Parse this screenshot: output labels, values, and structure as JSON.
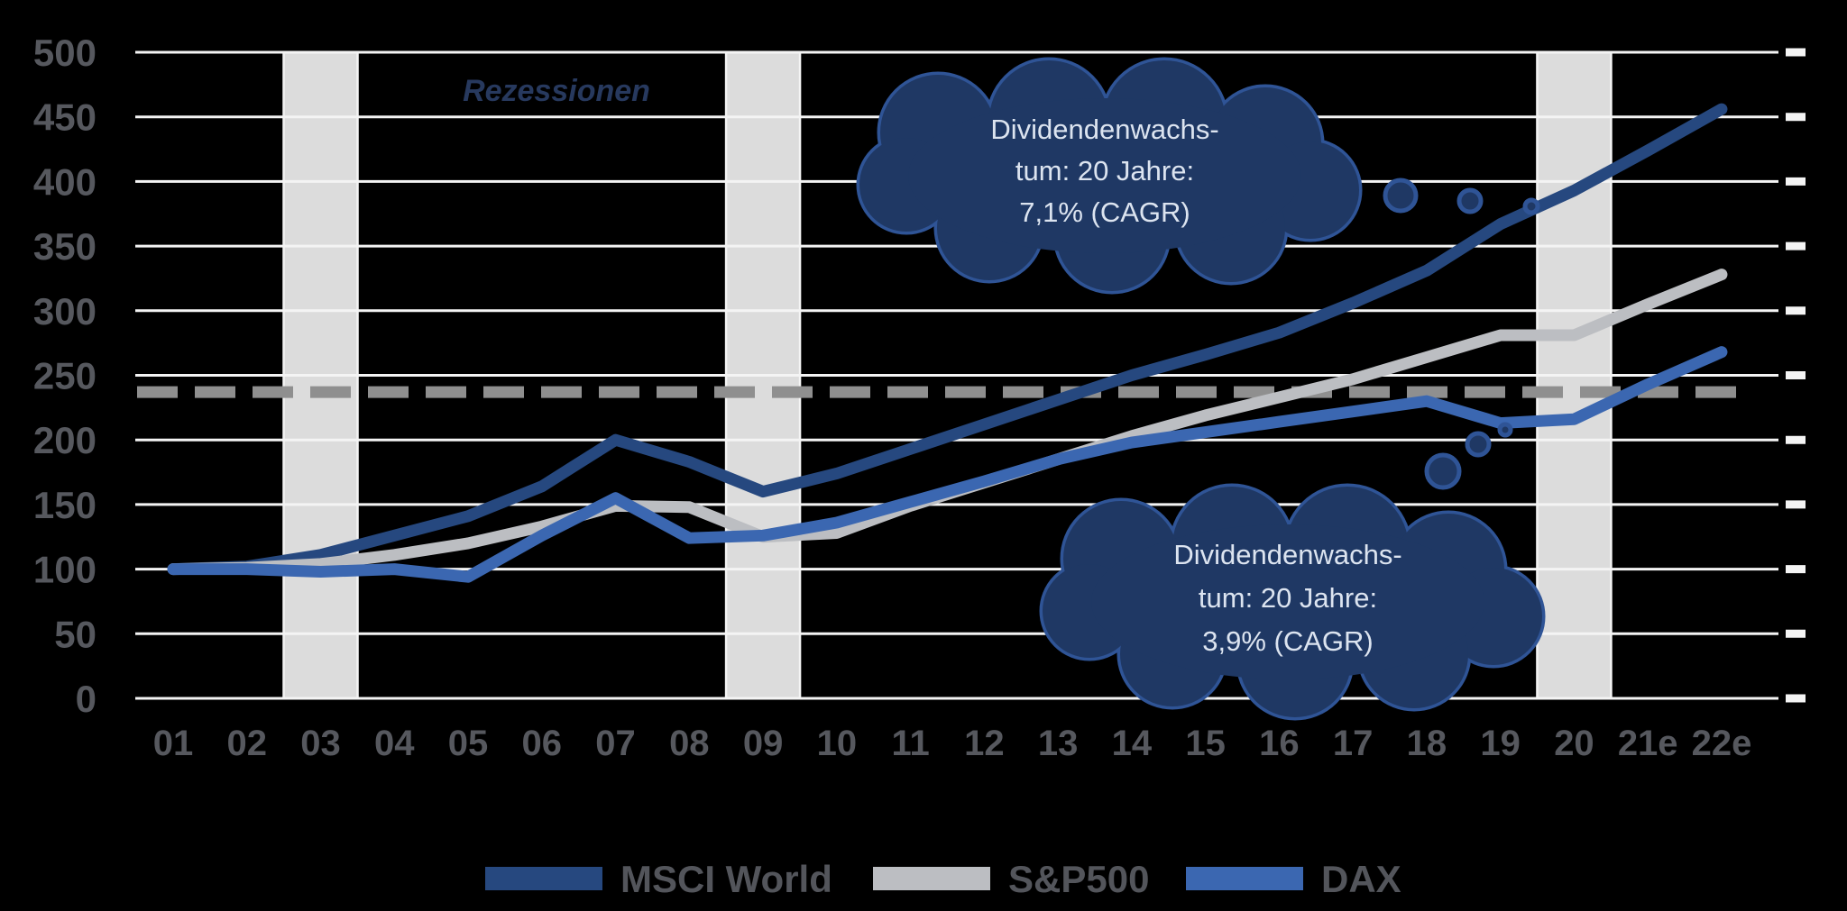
{
  "chart_data": {
    "type": "line",
    "bands_label": "Rezessionen",
    "x_axis": {
      "labels": [
        "01",
        "02",
        "03",
        "04",
        "05",
        "06",
        "07",
        "08",
        "09",
        "10",
        "11",
        "12",
        "13",
        "14",
        "15",
        "16",
        "17",
        "18",
        "19",
        "20",
        "21e",
        "22e"
      ]
    },
    "y_axis": {
      "min": 0,
      "max": 500,
      "step": 50,
      "ticks": [
        0,
        50,
        100,
        150,
        200,
        250,
        300,
        350,
        400,
        450,
        500
      ]
    },
    "grid": "horizontal-white",
    "legend_position": "bottom",
    "reference_line": {
      "value": 237,
      "style": "dashed"
    },
    "recession_bands": [
      {
        "year": "03"
      },
      {
        "year": "09"
      },
      {
        "year": "20"
      }
    ],
    "series": [
      {
        "name": "MSCI World",
        "color": "#26487F",
        "values": [
          100,
          102,
          111,
          126,
          141,
          164,
          200,
          183,
          160,
          174,
          193,
          212,
          231,
          250,
          266,
          283,
          306,
          331,
          367,
          393,
          424,
          456
        ]
      },
      {
        "name": "S&P500",
        "color": "#BCBEC2",
        "values": [
          100,
          101,
          104,
          111,
          120,
          133,
          149,
          148,
          125,
          128,
          149,
          167,
          185,
          203,
          219,
          233,
          247,
          264,
          281,
          281,
          305,
          328
        ]
      },
      {
        "name": "DAX",
        "color": "#3B67B1",
        "values": [
          100,
          100,
          98,
          100,
          94,
          126,
          155,
          124,
          126,
          136,
          152,
          168,
          185,
          198,
          206,
          214,
          222,
          230,
          213,
          216,
          243,
          268
        ]
      }
    ],
    "annotations": [
      {
        "target": "MSCI World",
        "lines": [
          "Dividendenwachs-",
          "tum: 20 Jahre:",
          "7,1% (CAGR)"
        ]
      },
      {
        "target": "DAX",
        "lines": [
          "Dividendenwachs-",
          "tum: 20 Jahre:",
          "3,9% (CAGR)"
        ]
      }
    ],
    "style": {
      "background": "#000000",
      "grid_color": "#F4F4F4",
      "band_fill": "#DCDCDC",
      "axis_label_color": "#56585E",
      "reference_color": "#8F8F8F",
      "cloud_fill": "#1F3864",
      "cloud_stroke": "#2F5496",
      "cloud_text_color": "#DCE4F0",
      "bands_label_color": "#2B3E66",
      "legend_text_color": "#53555B"
    }
  }
}
